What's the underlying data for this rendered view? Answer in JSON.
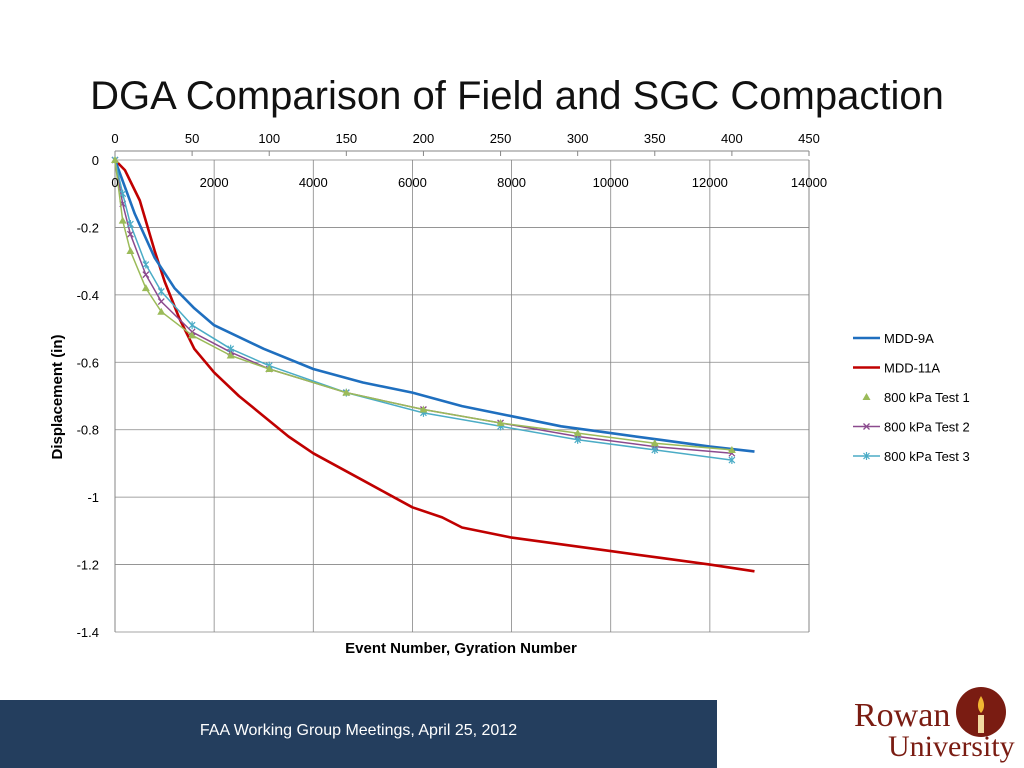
{
  "slide": {
    "title": "DGA Comparison of Field and SGC Compaction",
    "footer": "FAA Working Group Meetings, April 25, 2012",
    "logo": {
      "line1": "Rowan",
      "line2": "University"
    }
  },
  "colors": {
    "MDD-9A": "#1f6fbf",
    "MDD-11A": "#c00000",
    "800 kPa Test 1": "#9bbb59",
    "800 kPa Test 2": "#8b4a8e",
    "800 kPa Test 3": "#4bacc6",
    "footer": "#243e5e",
    "logo": "#7a1c12"
  },
  "chart_data": {
    "type": "line",
    "xlabel": "Event Number, Gyration Number",
    "ylabel": "Displacement (in)",
    "ylim": [
      -1.4,
      0
    ],
    "y_ticks": [
      0,
      -0.2,
      -0.4,
      -0.6,
      -0.8,
      -1,
      -1.2,
      -1.4
    ],
    "primary_x": {
      "lim": [
        0,
        14000
      ],
      "ticks": [
        0,
        2000,
        4000,
        6000,
        8000,
        10000,
        12000,
        14000
      ]
    },
    "secondary_x": {
      "lim": [
        0,
        450
      ],
      "ticks": [
        0,
        50,
        100,
        150,
        200,
        250,
        300,
        350,
        400,
        450
      ]
    },
    "grid": true,
    "legend_position": "right",
    "series": [
      {
        "name": "MDD-9A",
        "axis": "primary",
        "marker": "line",
        "x": [
          0,
          400,
          800,
          1200,
          1600,
          2000,
          3000,
          4000,
          5000,
          6000,
          6500,
          7000,
          8000,
          9000,
          10000,
          11000,
          12000,
          12900
        ],
        "y": [
          0,
          -0.16,
          -0.29,
          -0.38,
          -0.44,
          -0.49,
          -0.56,
          -0.62,
          -0.66,
          -0.69,
          -0.71,
          -0.73,
          -0.76,
          -0.79,
          -0.81,
          -0.83,
          -0.85,
          -0.865
        ]
      },
      {
        "name": "MDD-11A",
        "axis": "primary",
        "marker": "line",
        "x": [
          0,
          200,
          500,
          800,
          1000,
          1300,
          1600,
          2000,
          2500,
          3000,
          3500,
          4000,
          4500,
          5000,
          5500,
          6000,
          6600,
          7000,
          8000,
          9000,
          10000,
          11000,
          12000,
          12900
        ],
        "y": [
          0,
          -0.03,
          -0.12,
          -0.27,
          -0.36,
          -0.47,
          -0.56,
          -0.63,
          -0.7,
          -0.76,
          -0.82,
          -0.87,
          -0.91,
          -0.95,
          -0.99,
          -1.03,
          -1.06,
          -1.09,
          -1.12,
          -1.14,
          -1.16,
          -1.18,
          -1.2,
          -1.22
        ]
      },
      {
        "name": "800 kPa Test 1",
        "axis": "secondary",
        "marker": "triangle",
        "x": [
          0,
          5,
          10,
          20,
          30,
          50,
          75,
          100,
          150,
          200,
          250,
          300,
          350,
          400
        ],
        "y": [
          0,
          -0.18,
          -0.27,
          -0.38,
          -0.45,
          -0.52,
          -0.58,
          -0.62,
          -0.69,
          -0.74,
          -0.78,
          -0.81,
          -0.84,
          -0.86
        ]
      },
      {
        "name": "800 kPa Test 2",
        "axis": "secondary",
        "marker": "x",
        "x": [
          0,
          5,
          10,
          20,
          30,
          50,
          75,
          100,
          150,
          200,
          250,
          300,
          350,
          400
        ],
        "y": [
          0,
          -0.13,
          -0.22,
          -0.34,
          -0.42,
          -0.51,
          -0.57,
          -0.62,
          -0.69,
          -0.74,
          -0.78,
          -0.82,
          -0.85,
          -0.87
        ]
      },
      {
        "name": "800 kPa Test 3",
        "axis": "secondary",
        "marker": "asterisk",
        "x": [
          0,
          5,
          10,
          20,
          30,
          50,
          75,
          100,
          150,
          200,
          250,
          300,
          350,
          400
        ],
        "y": [
          0,
          -0.1,
          -0.19,
          -0.31,
          -0.39,
          -0.49,
          -0.56,
          -0.61,
          -0.69,
          -0.75,
          -0.79,
          -0.83,
          -0.86,
          -0.89
        ]
      }
    ]
  }
}
